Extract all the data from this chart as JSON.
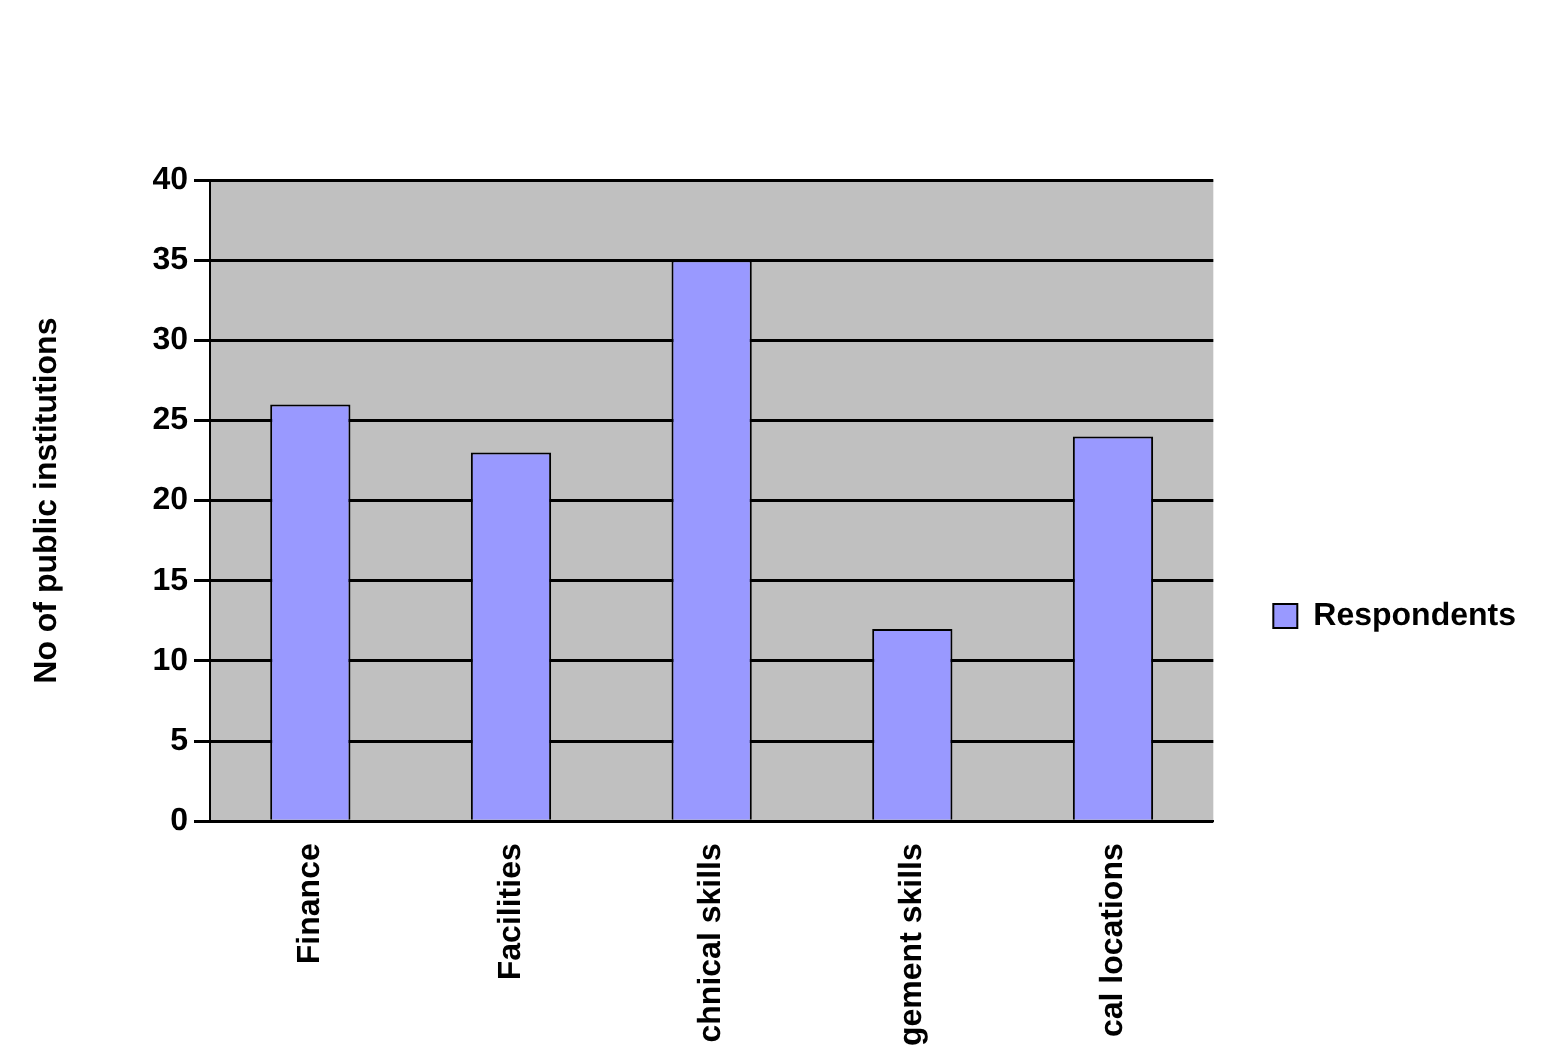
{
  "chart_data": {
    "type": "bar",
    "ylabel": "No of public institutions",
    "categories": [
      "Finance",
      "Facilities",
      "chnical skills",
      "gement skills",
      "cal locations"
    ],
    "series": [
      {
        "name": "Respondents",
        "color": "#9999ff",
        "values": [
          26,
          23,
          35,
          12,
          24
        ]
      }
    ],
    "ylim": [
      0,
      40
    ],
    "yticks": [
      0,
      5,
      10,
      15,
      20,
      25,
      30,
      35,
      40
    ],
    "grid": "y",
    "legend": "right"
  }
}
